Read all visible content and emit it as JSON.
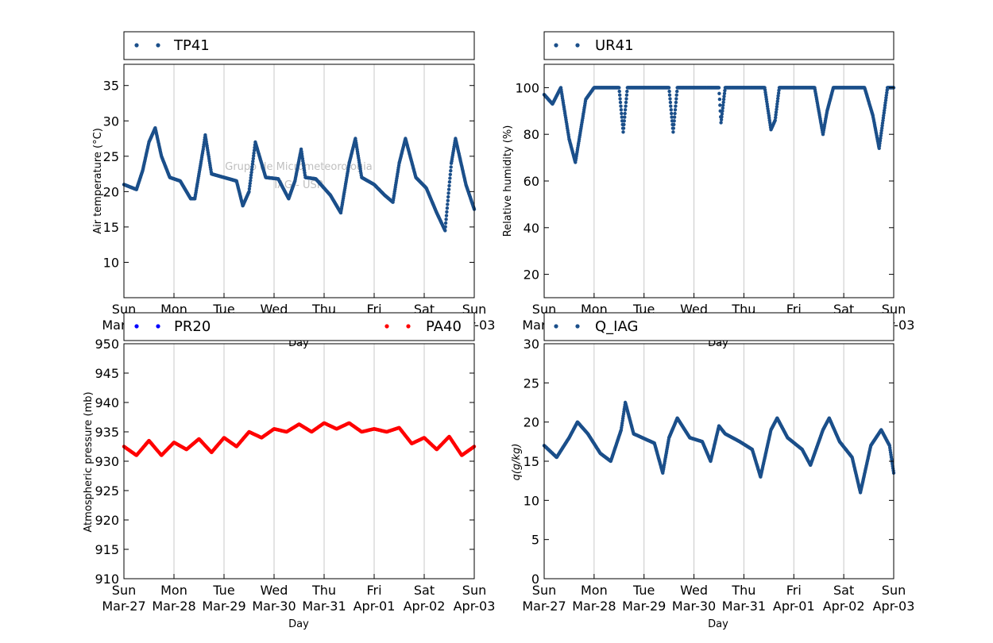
{
  "watermark": [
    "Grupo de Micrometeorologia",
    "IAG - USP"
  ],
  "x_ticks": [
    {
      "day": "Sun",
      "date": "Mar-27"
    },
    {
      "day": "Mon",
      "date": "Mar-28"
    },
    {
      "day": "Tue",
      "date": "Mar-29"
    },
    {
      "day": "Wed",
      "date": "Mar-30"
    },
    {
      "day": "Thu",
      "date": "Mar-31"
    },
    {
      "day": "Fri",
      "date": "Apr-01"
    },
    {
      "day": "Sat",
      "date": "Apr-02"
    },
    {
      "day": "Sun",
      "date": "Apr-03"
    }
  ],
  "colors": {
    "blue_series": "#1b4f8a",
    "blue_legend": "#0000ff",
    "red_series": "#ff0000",
    "grid": "#c8c8c8"
  },
  "chart_data": [
    {
      "type": "scatter",
      "ylabel": "Air temperature (°C)",
      "xlabel": "Day",
      "ylim": [
        5,
        38
      ],
      "yticks": [
        10,
        15,
        20,
        25,
        30,
        35
      ],
      "xlim": [
        "2016-03-27",
        "2016-04-03"
      ],
      "grid": "vertical",
      "legend": "top",
      "series": [
        {
          "name": "TP41",
          "color": "#1b4f8a",
          "x": [
            "2016-03-27 00:00",
            "2016-03-27 06:00",
            "2016-03-27 09:00",
            "2016-03-27 12:00",
            "2016-03-27 15:00",
            "2016-03-27 18:00",
            "2016-03-27 22:00",
            "2016-03-28 03:00",
            "2016-03-28 08:00",
            "2016-03-28 10:00",
            "2016-03-28 14:00",
            "2016-03-28 15:00",
            "2016-03-28 18:00",
            "2016-03-29 00:00",
            "2016-03-29 06:00",
            "2016-03-29 09:00",
            "2016-03-29 12:00",
            "2016-03-29 15:00",
            "2016-03-29 20:00",
            "2016-03-30 02:00",
            "2016-03-30 07:00",
            "2016-03-30 10:00",
            "2016-03-30 13:00",
            "2016-03-30 15:00",
            "2016-03-30 20:00",
            "2016-03-31 03:00",
            "2016-03-31 08:00",
            "2016-03-31 12:00",
            "2016-03-31 15:00",
            "2016-03-31 18:00",
            "2016-04-01 00:00",
            "2016-04-01 05:00",
            "2016-04-01 09:00",
            "2016-04-01 12:00",
            "2016-04-01 15:00",
            "2016-04-01 20:00",
            "2016-04-02 01:00",
            "2016-04-02 06:00",
            "2016-04-02 10:00",
            "2016-04-02 13:00",
            "2016-04-02 15:00",
            "2016-04-02 20:00",
            "2016-04-03 00:00"
          ],
          "y": [
            21,
            20.3,
            23,
            27,
            29,
            25,
            22,
            21.5,
            19,
            19,
            26,
            28,
            22.5,
            22,
            21.5,
            18,
            20,
            27,
            22,
            21.8,
            19,
            21.5,
            26,
            22,
            21.8,
            19.5,
            17,
            24,
            27.5,
            22,
            21,
            19.5,
            18.5,
            24,
            27.5,
            22,
            20.5,
            17,
            14.5,
            24,
            27.5,
            21,
            17.5
          ]
        }
      ]
    },
    {
      "type": "scatter",
      "ylabel": "Relative humidity (%)",
      "xlabel": "Day",
      "ylim": [
        10,
        110
      ],
      "yticks": [
        20,
        40,
        60,
        80,
        100
      ],
      "xlim": [
        "2016-03-27",
        "2016-04-03"
      ],
      "grid": "vertical",
      "legend": "top",
      "series": [
        {
          "name": "UR41",
          "color": "#1b4f8a",
          "x": [
            "2016-03-27 00:00",
            "2016-03-27 04:00",
            "2016-03-27 08:00",
            "2016-03-27 12:00",
            "2016-03-27 15:00",
            "2016-03-27 20:00",
            "2016-03-28 00:00",
            "2016-03-28 12:00",
            "2016-03-28 14:00",
            "2016-03-28 16:00",
            "2016-03-29 12:00",
            "2016-03-29 14:00",
            "2016-03-29 16:00",
            "2016-03-30 12:00",
            "2016-03-30 13:00",
            "2016-03-30 15:00",
            "2016-03-31 10:00",
            "2016-03-31 13:00",
            "2016-03-31 15:00",
            "2016-03-31 17:00",
            "2016-04-01 10:00",
            "2016-04-01 14:00",
            "2016-04-01 16:00",
            "2016-04-01 19:00",
            "2016-04-02 10:00",
            "2016-04-02 14:00",
            "2016-04-02 17:00",
            "2016-04-02 21:00",
            "2016-04-03 00:00"
          ],
          "y": [
            97,
            93,
            100,
            78,
            68,
            95,
            100,
            100,
            81,
            100,
            100,
            81,
            100,
            100,
            85,
            100,
            100,
            82,
            86,
            100,
            100,
            80,
            90,
            100,
            100,
            88,
            74,
            100,
            100
          ]
        }
      ]
    },
    {
      "type": "scatter",
      "ylabel": "Atmospheric pressure (mb)",
      "xlabel": "Day",
      "ylim": [
        910,
        950
      ],
      "yticks": [
        910,
        915,
        920,
        925,
        930,
        935,
        940,
        945,
        950
      ],
      "xlim": [
        "2016-03-27",
        "2016-04-03"
      ],
      "grid": "vertical",
      "legend": "top",
      "series": [
        {
          "name": "PR20",
          "color": "#0000ff",
          "x": [],
          "y": []
        },
        {
          "name": "PA40",
          "color": "#ff0000",
          "x": [
            "2016-03-27 00:00",
            "2016-03-27 06:00",
            "2016-03-27 12:00",
            "2016-03-27 18:00",
            "2016-03-28 00:00",
            "2016-03-28 06:00",
            "2016-03-28 12:00",
            "2016-03-28 18:00",
            "2016-03-29 00:00",
            "2016-03-29 06:00",
            "2016-03-29 12:00",
            "2016-03-29 18:00",
            "2016-03-30 00:00",
            "2016-03-30 06:00",
            "2016-03-30 12:00",
            "2016-03-30 18:00",
            "2016-03-31 00:00",
            "2016-03-31 06:00",
            "2016-03-31 12:00",
            "2016-03-31 18:00",
            "2016-04-01 00:00",
            "2016-04-01 06:00",
            "2016-04-01 12:00",
            "2016-04-01 18:00",
            "2016-04-02 00:00",
            "2016-04-02 06:00",
            "2016-04-02 12:00",
            "2016-04-02 18:00",
            "2016-04-03 00:00"
          ],
          "y": [
            932.5,
            931,
            933.5,
            931,
            933.2,
            932,
            933.8,
            931.5,
            934,
            932.5,
            935,
            934,
            935.5,
            935,
            936.3,
            935,
            936.5,
            935.5,
            936.5,
            935,
            935.5,
            935,
            935.7,
            933,
            934,
            932,
            934.2,
            931,
            932.5
          ]
        }
      ]
    },
    {
      "type": "scatter",
      "ylabel": "q(g/kg)",
      "xlabel": "Day",
      "ylim": [
        0,
        30
      ],
      "yticks": [
        0,
        5,
        10,
        15,
        20,
        25,
        30
      ],
      "xlim": [
        "2016-03-27",
        "2016-04-03"
      ],
      "grid": "vertical",
      "legend": "top",
      "series": [
        {
          "name": "Q_IAG",
          "color": "#1b4f8a",
          "x": [
            "2016-03-27 00:00",
            "2016-03-27 06:00",
            "2016-03-27 12:00",
            "2016-03-27 16:00",
            "2016-03-27 21:00",
            "2016-03-28 03:00",
            "2016-03-28 08:00",
            "2016-03-28 13:00",
            "2016-03-28 15:00",
            "2016-03-28 19:00",
            "2016-03-29 05:00",
            "2016-03-29 09:00",
            "2016-03-29 12:00",
            "2016-03-29 16:00",
            "2016-03-29 22:00",
            "2016-03-30 04:00",
            "2016-03-30 08:00",
            "2016-03-30 12:00",
            "2016-03-30 15:00",
            "2016-03-30 22:00",
            "2016-03-31 04:00",
            "2016-03-31 08:00",
            "2016-03-31 13:00",
            "2016-03-31 16:00",
            "2016-03-31 21:00",
            "2016-04-01 04:00",
            "2016-04-01 08:00",
            "2016-04-01 14:00",
            "2016-04-01 17:00",
            "2016-04-01 22:00",
            "2016-04-02 04:00",
            "2016-04-02 08:00",
            "2016-04-02 13:00",
            "2016-04-02 18:00",
            "2016-04-02 22:00",
            "2016-04-03 00:00"
          ],
          "y": [
            17,
            15.5,
            18,
            20,
            18.5,
            16,
            15,
            19,
            22.5,
            18.5,
            17.3,
            13.5,
            18,
            20.5,
            18,
            17.5,
            15,
            19.5,
            18.5,
            17.5,
            16.5,
            13,
            19,
            20.5,
            18,
            16.5,
            14.5,
            19,
            20.5,
            17.5,
            15.5,
            11,
            17,
            19,
            17,
            13.5
          ]
        }
      ]
    }
  ]
}
